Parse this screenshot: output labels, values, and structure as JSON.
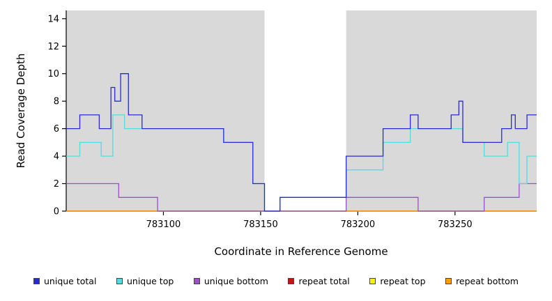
{
  "chart_data": {
    "type": "line",
    "step": true,
    "title": "",
    "xlabel": "Coordinate in Reference Genome",
    "ylabel": "Read Coverage Depth",
    "xlim": [
      783050,
      783292
    ],
    "ylim": [
      0,
      14.6
    ],
    "x_ticks": [
      783100,
      783150,
      783200,
      783250
    ],
    "y_ticks": [
      0,
      2,
      4,
      6,
      8,
      10,
      12,
      14
    ],
    "gap_region": [
      783152,
      783194
    ],
    "panel_bg": "#d9d9d9",
    "axis_color": "#000000",
    "legend_position": "bottom",
    "grid": false,
    "draw_order": [
      3,
      4,
      5,
      2,
      1,
      0
    ],
    "series": [
      {
        "name": "unique total",
        "color": "#2929d6",
        "steps": [
          [
            783050,
            6
          ],
          [
            783057,
            7
          ],
          [
            783067,
            6
          ],
          [
            783073,
            9
          ],
          [
            783075,
            8
          ],
          [
            783078,
            10
          ],
          [
            783082,
            7
          ],
          [
            783089,
            6
          ],
          [
            783131,
            5
          ],
          [
            783146,
            2
          ],
          [
            783152,
            0
          ],
          [
            783160,
            1
          ],
          [
            783194,
            4
          ],
          [
            783213,
            6
          ],
          [
            783227,
            7
          ],
          [
            783231,
            6
          ],
          [
            783248,
            7
          ],
          [
            783252,
            8
          ],
          [
            783254,
            5
          ],
          [
            783274,
            6
          ],
          [
            783279,
            7
          ],
          [
            783281,
            6
          ],
          [
            783287,
            7
          ]
        ]
      },
      {
        "name": "unique top",
        "color": "#53dcdc",
        "steps": [
          [
            783050,
            4
          ],
          [
            783057,
            5
          ],
          [
            783068,
            4
          ],
          [
            783074,
            7
          ],
          [
            783080,
            6
          ],
          [
            783131,
            5
          ],
          [
            783146,
            2
          ],
          [
            783152,
            0
          ],
          [
            783160,
            1
          ],
          [
            783194,
            3
          ],
          [
            783213,
            5
          ],
          [
            783227,
            6
          ],
          [
            783254,
            5
          ],
          [
            783265,
            4
          ],
          [
            783277,
            5
          ],
          [
            783283,
            2
          ],
          [
            783287,
            4
          ]
        ]
      },
      {
        "name": "unique bottom",
        "color": "#9a4fd0",
        "steps": [
          [
            783050,
            2
          ],
          [
            783077,
            1
          ],
          [
            783097,
            0
          ],
          [
            783194,
            1
          ],
          [
            783231,
            0
          ],
          [
            783265,
            1
          ],
          [
            783283,
            2
          ]
        ]
      },
      {
        "name": "repeat total",
        "color": "#cc1111",
        "steps": [
          [
            783050,
            0
          ]
        ]
      },
      {
        "name": "repeat top",
        "color": "#f5f500",
        "steps": [
          [
            783050,
            0
          ]
        ]
      },
      {
        "name": "repeat bottom",
        "color": "#ff9d00",
        "steps": [
          [
            783050,
            0
          ]
        ]
      }
    ]
  }
}
